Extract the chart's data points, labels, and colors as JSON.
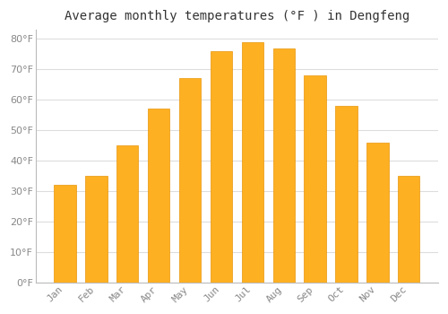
{
  "title": "Average monthly temperatures (°F ) in Dengfeng",
  "months": [
    "Jan",
    "Feb",
    "Mar",
    "Apr",
    "May",
    "Jun",
    "Jul",
    "Aug",
    "Sep",
    "Oct",
    "Nov",
    "Dec"
  ],
  "values": [
    32,
    35,
    45,
    57,
    67,
    76,
    79,
    77,
    68,
    58,
    46,
    35
  ],
  "bar_color": "#FDB022",
  "bar_edge_color": "#E8950A",
  "background_color": "#FFFFFF",
  "grid_color": "#DDDDDD",
  "ylim": [
    0,
    83
  ],
  "ytick_values": [
    0,
    10,
    20,
    30,
    40,
    50,
    60,
    70,
    80
  ],
  "title_fontsize": 10,
  "tick_fontsize": 8,
  "text_color": "#888888",
  "title_color": "#333333",
  "bar_width": 0.7
}
